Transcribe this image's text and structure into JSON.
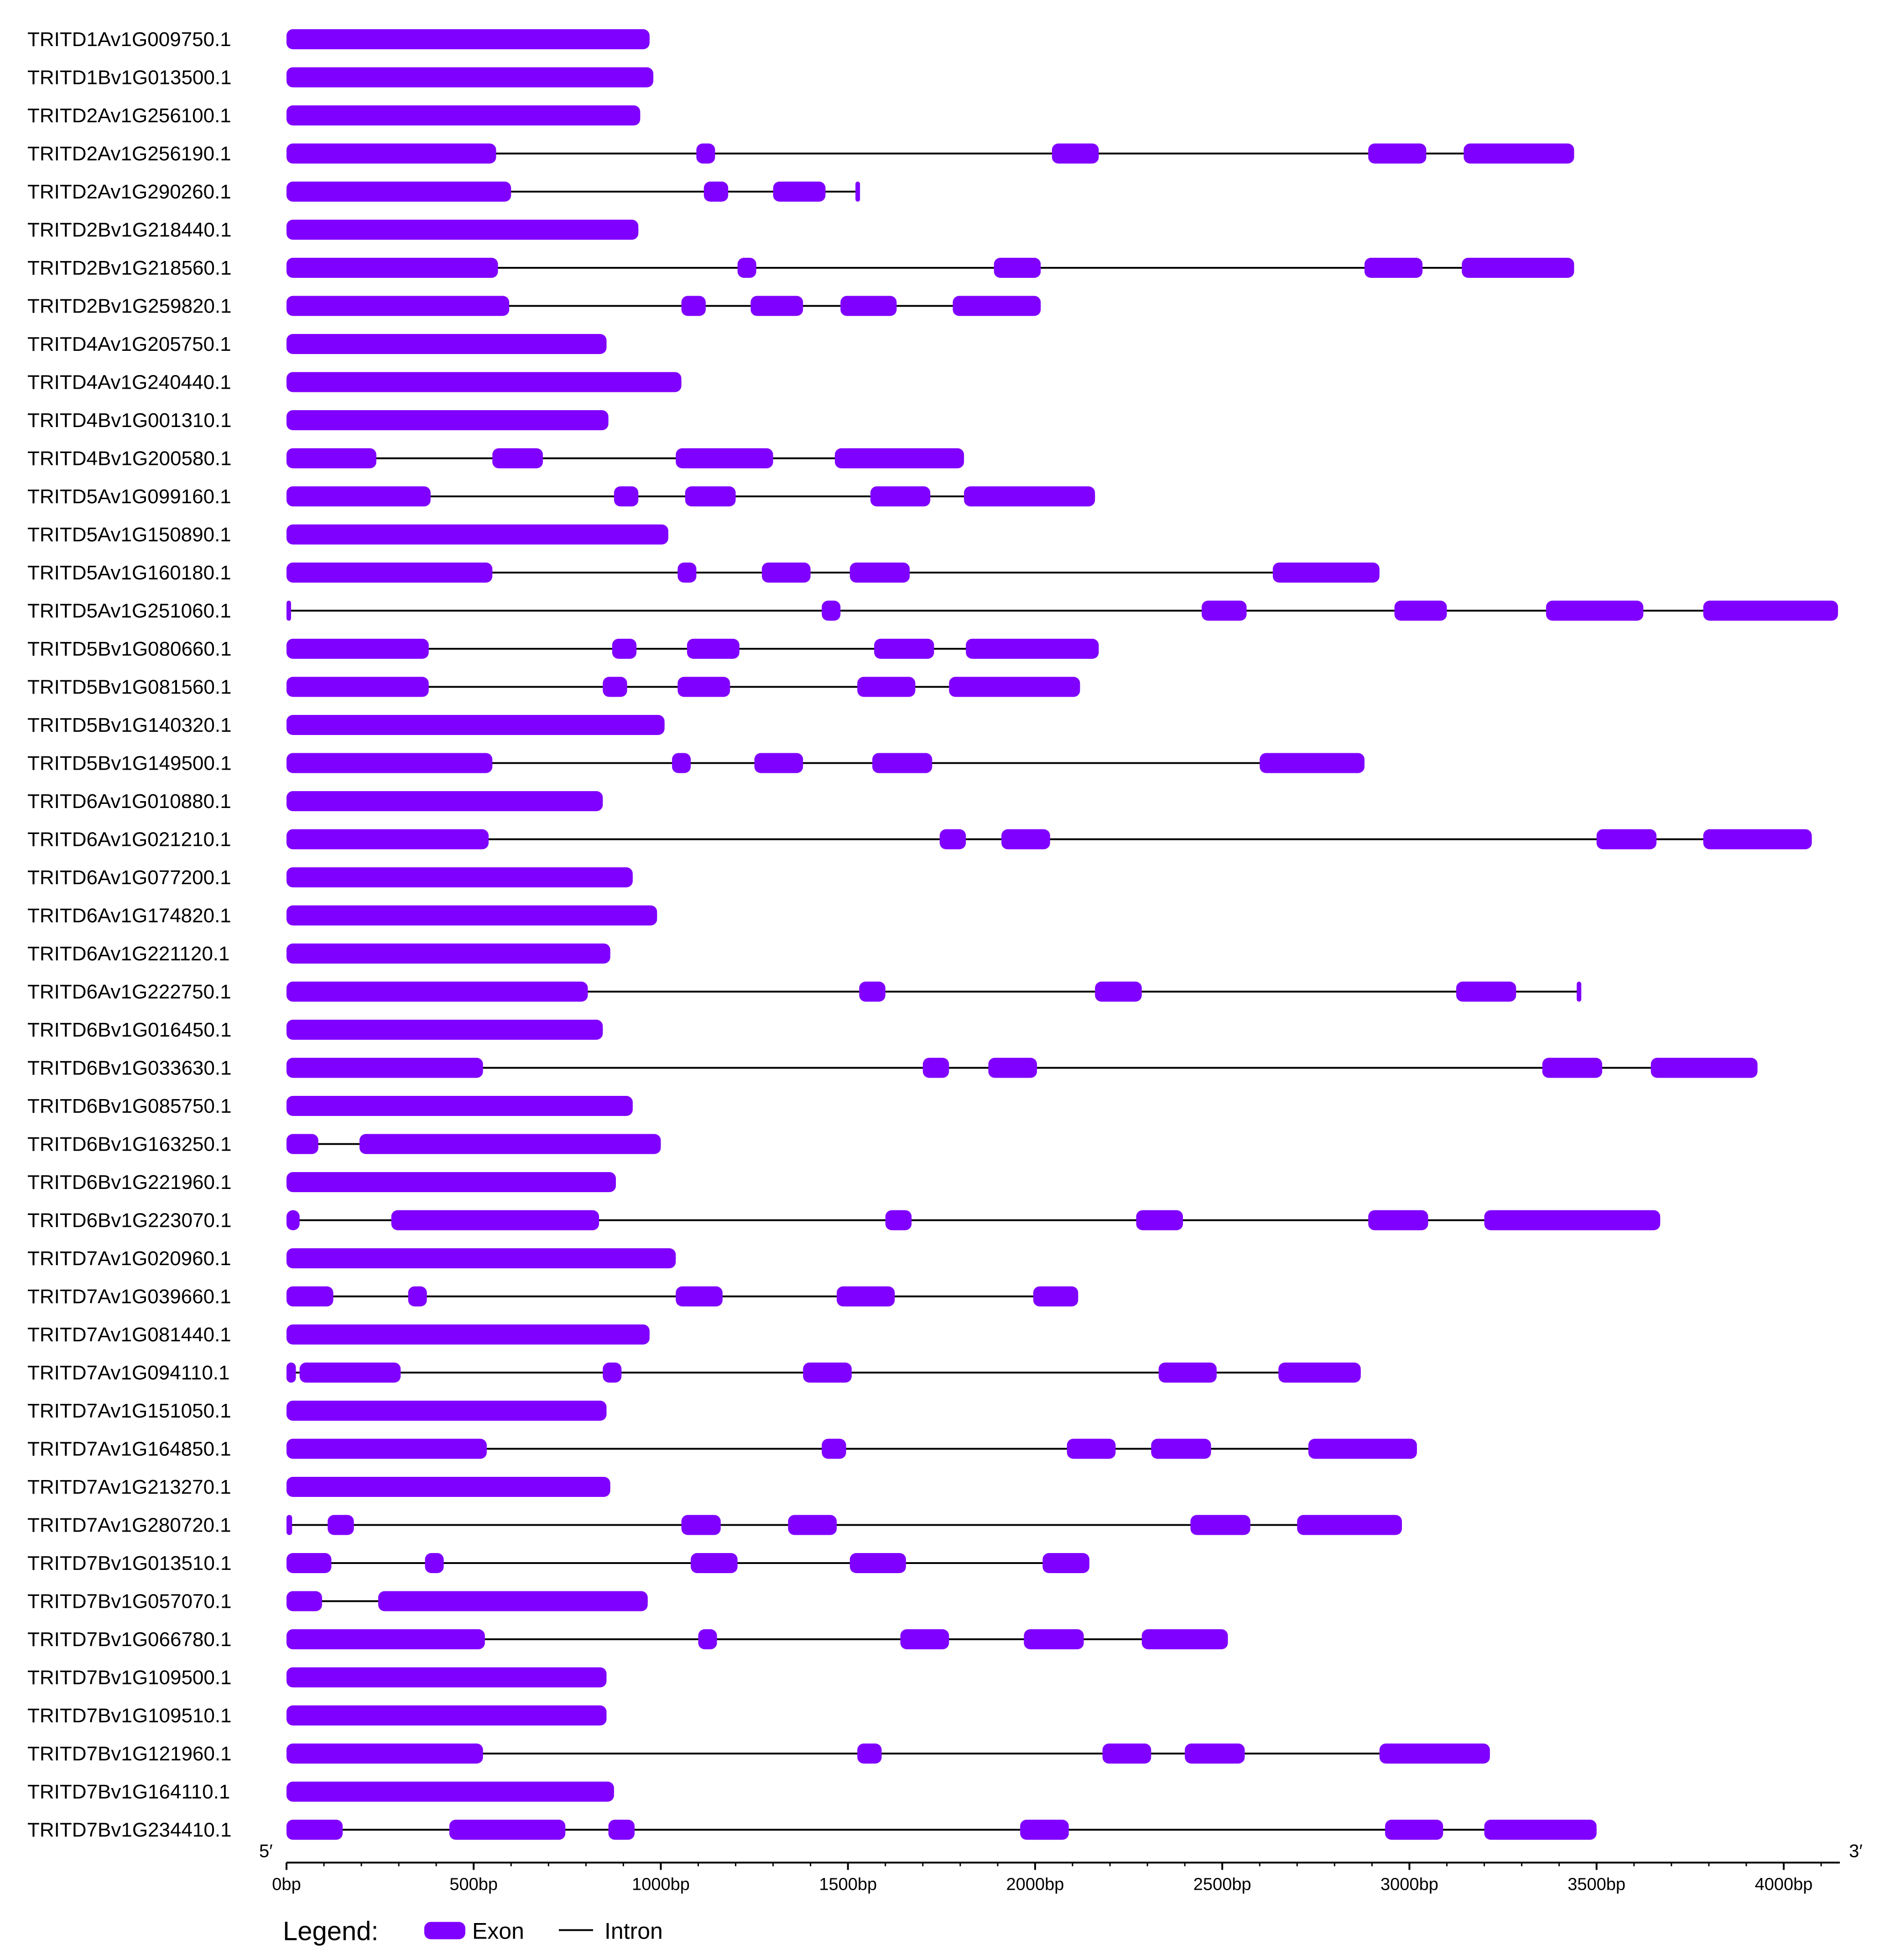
{
  "colors": {
    "exon": "#8000FF",
    "intron": "#000000"
  },
  "axis": {
    "min": 0,
    "max": 4150,
    "ticks": [
      {
        "value": 0,
        "label": "0bp"
      },
      {
        "value": 500,
        "label": "500bp"
      },
      {
        "value": 1000,
        "label": "1000bp"
      },
      {
        "value": 1500,
        "label": "1500bp"
      },
      {
        "value": 2000,
        "label": "2000bp"
      },
      {
        "value": 2500,
        "label": "2500bp"
      },
      {
        "value": 3000,
        "label": "3000bp"
      },
      {
        "value": 3500,
        "label": "3500bp"
      },
      {
        "value": 4000,
        "label": "4000bp"
      }
    ],
    "left_end": "5′",
    "right_end": "3′"
  },
  "legend": {
    "title": "Legend:",
    "exon_label": "Exon",
    "intron_label": "Intron"
  },
  "chart_data": {
    "type": "gene-structure",
    "genes": [
      {
        "name": "TRITD1Av1G009750.1",
        "length": 970,
        "exons": [
          [
            0,
            970
          ]
        ]
      },
      {
        "name": "TRITD1Bv1G013500.1",
        "length": 980,
        "exons": [
          [
            0,
            980
          ]
        ]
      },
      {
        "name": "TRITD2Av1G256100.1",
        "length": 945,
        "exons": [
          [
            0,
            945
          ]
        ]
      },
      {
        "name": "TRITD2Av1G256190.1",
        "length": 3440,
        "exons": [
          [
            0,
            560
          ],
          [
            1095,
            1145
          ],
          [
            2045,
            2170
          ],
          [
            2890,
            3045
          ],
          [
            3145,
            3440
          ]
        ]
      },
      {
        "name": "TRITD2Av1G290260.1",
        "length": 1530,
        "exons": [
          [
            0,
            600
          ],
          [
            1115,
            1180
          ],
          [
            1300,
            1440
          ],
          [
            1520,
            1530
          ]
        ]
      },
      {
        "name": "TRITD2Bv1G218440.1",
        "length": 940,
        "exons": [
          [
            0,
            940
          ]
        ]
      },
      {
        "name": "TRITD2Bv1G218560.1",
        "length": 3440,
        "exons": [
          [
            0,
            565
          ],
          [
            1205,
            1255
          ],
          [
            1890,
            2015
          ],
          [
            2880,
            3035
          ],
          [
            3140,
            3440
          ]
        ]
      },
      {
        "name": "TRITD2Bv1G259820.1",
        "length": 2015,
        "exons": [
          [
            0,
            595
          ],
          [
            1055,
            1120
          ],
          [
            1240,
            1380
          ],
          [
            1480,
            1630
          ],
          [
            1780,
            2015
          ]
        ]
      },
      {
        "name": "TRITD4Av1G205750.1",
        "length": 855,
        "exons": [
          [
            0,
            855
          ]
        ]
      },
      {
        "name": "TRITD4Av1G240440.1",
        "length": 1055,
        "exons": [
          [
            0,
            1055
          ]
        ]
      },
      {
        "name": "TRITD4Bv1G001310.1",
        "length": 860,
        "exons": [
          [
            0,
            860
          ]
        ]
      },
      {
        "name": "TRITD4Bv1G200580.1",
        "length": 1810,
        "exons": [
          [
            0,
            240
          ],
          [
            550,
            685
          ],
          [
            1040,
            1300
          ],
          [
            1465,
            1810
          ]
        ]
      },
      {
        "name": "TRITD5Av1G099160.1",
        "length": 2160,
        "exons": [
          [
            0,
            385
          ],
          [
            875,
            940
          ],
          [
            1065,
            1200
          ],
          [
            1560,
            1720
          ],
          [
            1810,
            2160
          ]
        ]
      },
      {
        "name": "TRITD5Av1G150890.1",
        "length": 1020,
        "exons": [
          [
            0,
            1020
          ]
        ]
      },
      {
        "name": "TRITD5Av1G160180.1",
        "length": 2920,
        "exons": [
          [
            0,
            550
          ],
          [
            1045,
            1095
          ],
          [
            1270,
            1400
          ],
          [
            1505,
            1665
          ],
          [
            2635,
            2920
          ]
        ]
      },
      {
        "name": "TRITD5Av1G251060.1",
        "length": 4145,
        "exons": [
          [
            0,
            12
          ],
          [
            1430,
            1480
          ],
          [
            2445,
            2565
          ],
          [
            2960,
            3100
          ],
          [
            3365,
            3625
          ],
          [
            3785,
            4145
          ]
        ]
      },
      {
        "name": "TRITD5Bv1G080660.1",
        "length": 2170,
        "exons": [
          [
            0,
            380
          ],
          [
            870,
            935
          ],
          [
            1070,
            1210
          ],
          [
            1570,
            1730
          ],
          [
            1815,
            2170
          ]
        ]
      },
      {
        "name": "TRITD5Bv1G081560.1",
        "length": 2120,
        "exons": [
          [
            0,
            380
          ],
          [
            845,
            910
          ],
          [
            1045,
            1185
          ],
          [
            1525,
            1680
          ],
          [
            1770,
            2120
          ]
        ]
      },
      {
        "name": "TRITD5Bv1G140320.1",
        "length": 1010,
        "exons": [
          [
            0,
            1010
          ]
        ]
      },
      {
        "name": "TRITD5Bv1G149500.1",
        "length": 2880,
        "exons": [
          [
            0,
            550
          ],
          [
            1030,
            1080
          ],
          [
            1250,
            1380
          ],
          [
            1565,
            1725
          ],
          [
            2600,
            2880
          ]
        ]
      },
      {
        "name": "TRITD6Av1G010880.1",
        "length": 845,
        "exons": [
          [
            0,
            845
          ]
        ]
      },
      {
        "name": "TRITD6Av1G021210.1",
        "length": 4075,
        "exons": [
          [
            0,
            540
          ],
          [
            1745,
            1815
          ],
          [
            1910,
            2040
          ],
          [
            3500,
            3660
          ],
          [
            3785,
            4075
          ]
        ]
      },
      {
        "name": "TRITD6Av1G077200.1",
        "length": 925,
        "exons": [
          [
            0,
            925
          ]
        ]
      },
      {
        "name": "TRITD6Av1G174820.1",
        "length": 990,
        "exons": [
          [
            0,
            990
          ]
        ]
      },
      {
        "name": "TRITD6Av1G221120.1",
        "length": 865,
        "exons": [
          [
            0,
            865
          ]
        ]
      },
      {
        "name": "TRITD6Av1G222750.1",
        "length": 3450,
        "exons": [
          [
            0,
            805
          ],
          [
            1530,
            1600
          ],
          [
            2160,
            2285
          ],
          [
            3125,
            3285
          ],
          [
            3447,
            3450
          ]
        ]
      },
      {
        "name": "TRITD6Bv1G016450.1",
        "length": 845,
        "exons": [
          [
            0,
            845
          ]
        ]
      },
      {
        "name": "TRITD6Bv1G033630.1",
        "length": 3930,
        "exons": [
          [
            0,
            525
          ],
          [
            1700,
            1770
          ],
          [
            1875,
            2005
          ],
          [
            3355,
            3515
          ],
          [
            3645,
            3930
          ]
        ]
      },
      {
        "name": "TRITD6Bv1G085750.1",
        "length": 925,
        "exons": [
          [
            0,
            925
          ]
        ]
      },
      {
        "name": "TRITD6Bv1G163250.1",
        "length": 1000,
        "exons": [
          [
            0,
            85
          ],
          [
            195,
            1000
          ]
        ]
      },
      {
        "name": "TRITD6Bv1G221960.1",
        "length": 880,
        "exons": [
          [
            0,
            880
          ]
        ]
      },
      {
        "name": "TRITD6Bv1G223070.1",
        "length": 3670,
        "exons": [
          [
            0,
            35
          ],
          [
            280,
            835
          ],
          [
            1600,
            1670
          ],
          [
            2270,
            2395
          ],
          [
            2890,
            3050
          ],
          [
            3200,
            3670
          ]
        ]
      },
      {
        "name": "TRITD7Av1G020960.1",
        "length": 1040,
        "exons": [
          [
            0,
            1040
          ]
        ]
      },
      {
        "name": "TRITD7Av1G039660.1",
        "length": 2115,
        "exons": [
          [
            0,
            125
          ],
          [
            325,
            375
          ],
          [
            1040,
            1165
          ],
          [
            1470,
            1625
          ],
          [
            1995,
            2115
          ]
        ]
      },
      {
        "name": "TRITD7Av1G081440.1",
        "length": 970,
        "exons": [
          [
            0,
            970
          ]
        ]
      },
      {
        "name": "TRITD7Av1G094110.1",
        "length": 2870,
        "exons": [
          [
            0,
            25
          ],
          [
            35,
            305
          ],
          [
            845,
            895
          ],
          [
            1380,
            1510
          ],
          [
            2330,
            2485
          ],
          [
            2650,
            2870
          ]
        ]
      },
      {
        "name": "TRITD7Av1G151050.1",
        "length": 855,
        "exons": [
          [
            0,
            855
          ]
        ]
      },
      {
        "name": "TRITD7Av1G164850.1",
        "length": 3020,
        "exons": [
          [
            0,
            535
          ],
          [
            1430,
            1495
          ],
          [
            2085,
            2215
          ],
          [
            2310,
            2470
          ],
          [
            2730,
            3020
          ]
        ]
      },
      {
        "name": "TRITD7Av1G213270.1",
        "length": 865,
        "exons": [
          [
            0,
            865
          ]
        ]
      },
      {
        "name": "TRITD7Av1G280720.1",
        "length": 2980,
        "exons": [
          [
            0,
            15
          ],
          [
            110,
            180
          ],
          [
            1055,
            1160
          ],
          [
            1340,
            1470
          ],
          [
            2415,
            2575
          ],
          [
            2700,
            2980
          ]
        ]
      },
      {
        "name": "TRITD7Bv1G013510.1",
        "length": 2145,
        "exons": [
          [
            0,
            120
          ],
          [
            370,
            420
          ],
          [
            1080,
            1205
          ],
          [
            1505,
            1655
          ],
          [
            2020,
            2145
          ]
        ]
      },
      {
        "name": "TRITD7Bv1G057070.1",
        "length": 965,
        "exons": [
          [
            0,
            95
          ],
          [
            245,
            965
          ]
        ]
      },
      {
        "name": "TRITD7Bv1G066780.1",
        "length": 2515,
        "exons": [
          [
            0,
            530
          ],
          [
            1100,
            1150
          ],
          [
            1640,
            1770
          ],
          [
            1970,
            2130
          ],
          [
            2285,
            2515
          ]
        ]
      },
      {
        "name": "TRITD7Bv1G109500.1",
        "length": 855,
        "exons": [
          [
            0,
            855
          ]
        ]
      },
      {
        "name": "TRITD7Bv1G109510.1",
        "length": 855,
        "exons": [
          [
            0,
            855
          ]
        ]
      },
      {
        "name": "TRITD7Bv1G121960.1",
        "length": 3215,
        "exons": [
          [
            0,
            525
          ],
          [
            1525,
            1590
          ],
          [
            2180,
            2310
          ],
          [
            2400,
            2560
          ],
          [
            2920,
            3215
          ]
        ]
      },
      {
        "name": "TRITD7Bv1G164110.1",
        "length": 875,
        "exons": [
          [
            0,
            875
          ]
        ]
      },
      {
        "name": "TRITD7Bv1G234410.1",
        "length": 3500,
        "exons": [
          [
            0,
            150
          ],
          [
            435,
            745
          ],
          [
            860,
            930
          ],
          [
            1960,
            2090
          ],
          [
            2935,
            3090
          ],
          [
            3200,
            3500
          ]
        ]
      }
    ]
  }
}
